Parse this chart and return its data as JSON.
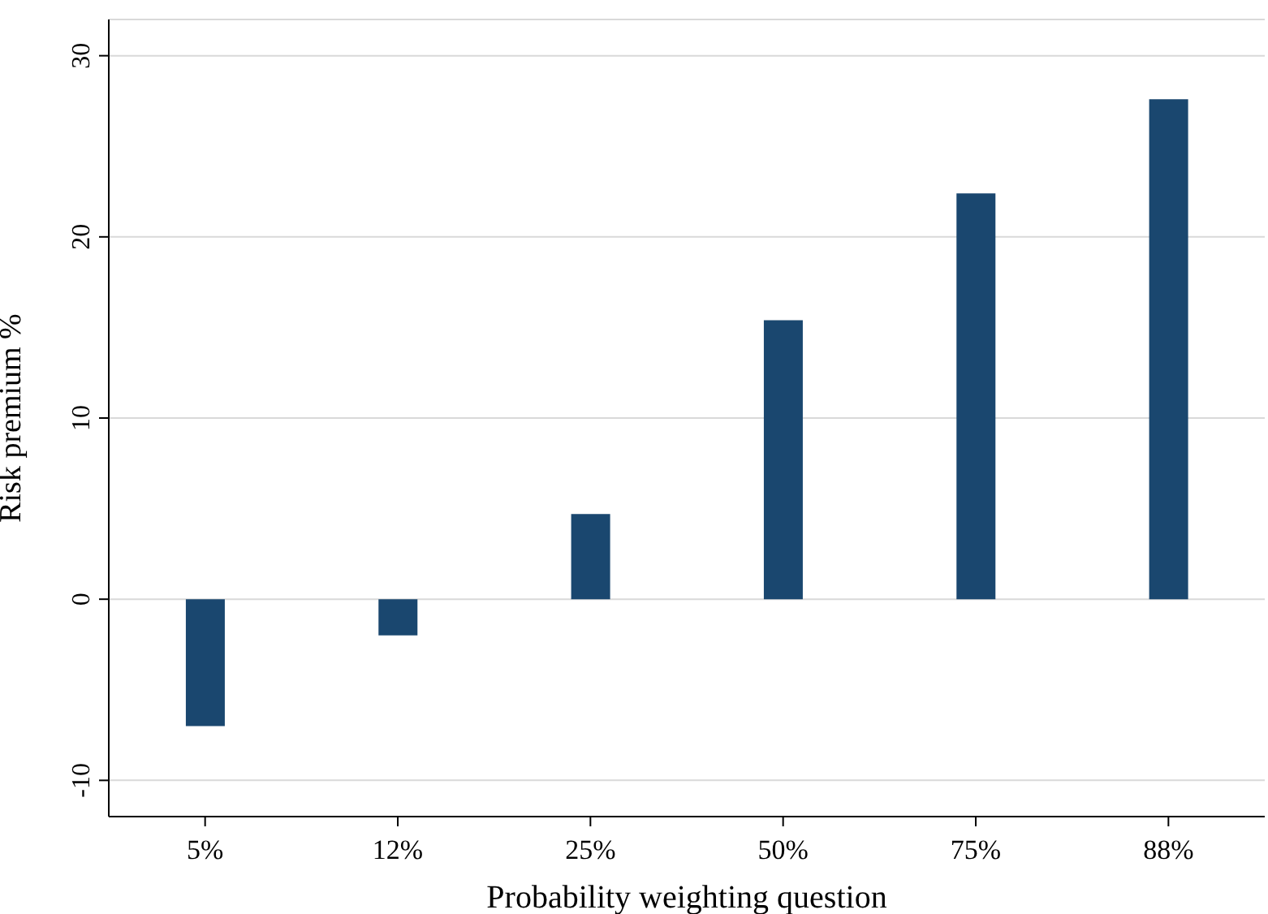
{
  "chart_data": {
    "type": "bar",
    "xlabel": "Probability weighting question",
    "ylabel": "Risk premium %",
    "categories": [
      "5%",
      "12%",
      "25%",
      "50%",
      "75%",
      "88%"
    ],
    "values": [
      -7.0,
      -2.0,
      4.7,
      15.4,
      22.4,
      27.6
    ],
    "color": "#1a476f",
    "ylim": [
      -12,
      32
    ],
    "yticks": [
      -10,
      0,
      10,
      20,
      30
    ],
    "grid": "y"
  }
}
